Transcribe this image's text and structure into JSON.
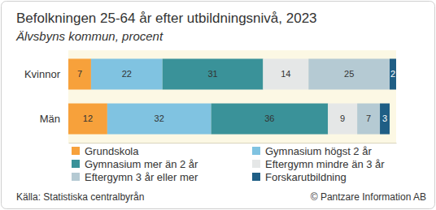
{
  "chart_data": {
    "type": "bar",
    "orientation": "horizontal",
    "stacked": true,
    "data_labels": true,
    "tick_labels": "y",
    "legend": "bottom",
    "title": "Befolkningen 25-64 år efter utbildningsnivå, 2023",
    "subtitle": "Älvsbyns kommun, procent",
    "annotations": [
      "Källa: Statistiska centralbyrån",
      "© Pantzare Information AB"
    ],
    "categories": [
      "Kvinnor",
      "Män"
    ],
    "xlim": [
      0,
      101
    ],
    "xticks": [],
    "series": [
      {
        "name": "Grundskola",
        "color": "#f7a13b",
        "values": [
          7,
          12
        ]
      },
      {
        "name": "Gymnasium högst 2 år",
        "color": "#80c3e1",
        "values": [
          22,
          32
        ]
      },
      {
        "name": "Gymnasium mer än 2 år",
        "color": "#3a9299",
        "values": [
          31,
          36
        ]
      },
      {
        "name": "Eftergymn mindre än 3 år",
        "color": "#e5e7e7",
        "values": [
          14,
          9
        ]
      },
      {
        "name": "Eftergymn 3 år eller mer",
        "color": "#b5cad3",
        "values": [
          25,
          7
        ]
      },
      {
        "name": "Forskarutbildning",
        "color": "#1f5e85",
        "values": [
          2,
          3
        ]
      }
    ]
  }
}
